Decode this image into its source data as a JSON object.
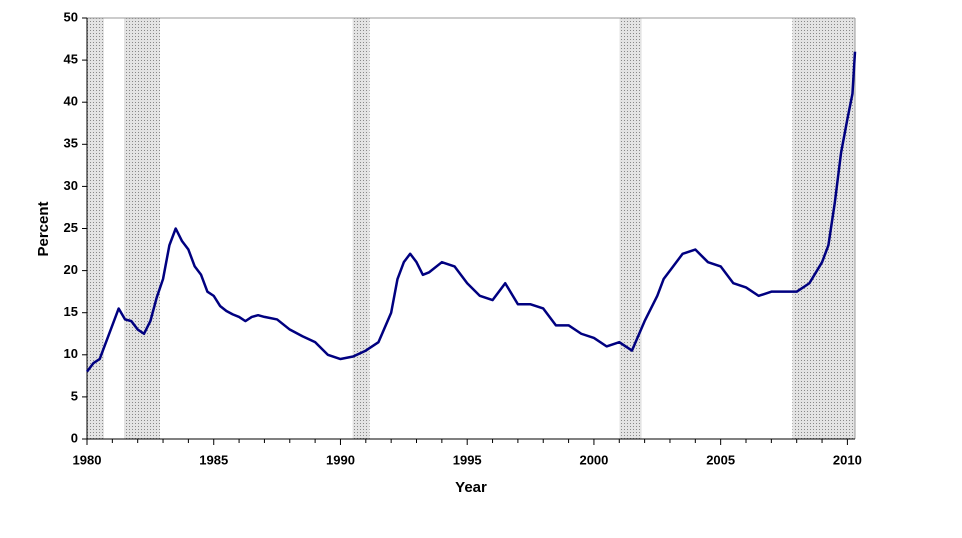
{
  "chart_data": {
    "type": "line",
    "x_label": "Year",
    "y_label": "Percent",
    "xlim": [
      1980,
      2010.3
    ],
    "ylim": [
      0,
      50
    ],
    "xticks": [
      1980,
      1985,
      1990,
      1995,
      2000,
      2005,
      2010
    ],
    "xminorticks": [
      1981,
      1982,
      1983,
      1984,
      1986,
      1987,
      1988,
      1989,
      1991,
      1992,
      1993,
      1994,
      1996,
      1997,
      1998,
      1999,
      2001,
      2002,
      2003,
      2004,
      2006,
      2007,
      2008,
      2009
    ],
    "yticks": [
      0,
      5,
      10,
      15,
      20,
      25,
      30,
      35,
      40,
      45,
      50
    ],
    "grid": false,
    "shaded_periods": [
      [
        1980,
        1980.67
      ],
      [
        1981.46,
        1982.88
      ],
      [
        1990.48,
        1991.15
      ],
      [
        2001.01,
        2001.88
      ],
      [
        2007.83,
        2010.3
      ]
    ],
    "shade_color": "#c8c8c8",
    "series": [
      {
        "name": "Percent",
        "color": "#000080",
        "x": [
          1980,
          1980.25,
          1980.5,
          1980.75,
          1981,
          1981.25,
          1981.5,
          1981.75,
          1982,
          1982.25,
          1982.5,
          1982.75,
          1983,
          1983.25,
          1983.5,
          1983.75,
          1984,
          1984.25,
          1984.5,
          1984.75,
          1985,
          1985.25,
          1985.5,
          1985.75,
          1986,
          1986.25,
          1986.5,
          1986.75,
          1987,
          1987.5,
          1988,
          1988.5,
          1989,
          1989.5,
          1990,
          1990.5,
          1991,
          1991.5,
          1992,
          1992.25,
          1992.5,
          1992.75,
          1993,
          1993.25,
          1993.5,
          1994,
          1994.5,
          1995,
          1995.5,
          1996,
          1996.5,
          1997,
          1997.5,
          1998,
          1998.5,
          1999,
          1999.5,
          2000,
          2000.5,
          2001,
          2001.5,
          2002,
          2002.5,
          2002.75,
          2003,
          2003.5,
          2004,
          2004.5,
          2005,
          2005.5,
          2006,
          2006.5,
          2007,
          2007.5,
          2008,
          2008.5,
          2009,
          2009.25,
          2009.5,
          2009.75,
          2010,
          2010.2,
          2010.3
        ],
        "values": [
          8,
          9,
          9.5,
          11.5,
          13.5,
          15.5,
          14.2,
          14,
          13,
          12.5,
          14,
          16.8,
          19,
          23,
          25,
          23.5,
          22.5,
          20.5,
          19.5,
          17.5,
          17,
          15.8,
          15.2,
          14.8,
          14.5,
          14,
          14.5,
          14.7,
          14.5,
          14.2,
          13,
          12.2,
          11.5,
          10,
          9.5,
          9.8,
          10.5,
          11.5,
          15,
          19,
          21,
          22,
          21,
          19.5,
          19.8,
          21,
          20.5,
          18.5,
          17,
          16.5,
          18.5,
          16,
          16,
          15.5,
          13.5,
          13.5,
          12.5,
          12,
          11,
          11.5,
          10.5,
          14,
          17,
          19,
          20,
          22,
          22.5,
          21,
          20.5,
          18.5,
          18,
          17,
          17.5,
          17.5,
          17.5,
          18.5,
          21,
          23,
          28,
          34,
          38,
          41,
          46
        ]
      }
    ]
  }
}
